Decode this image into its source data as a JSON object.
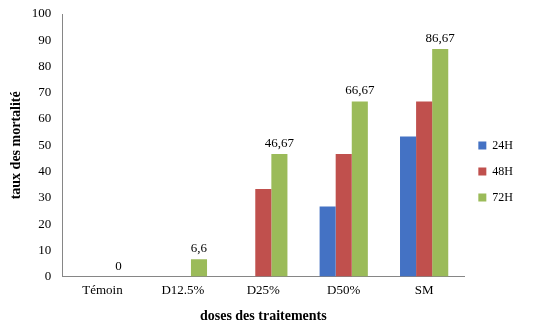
{
  "chart_data": {
    "type": "bar",
    "categories": [
      "Témoin",
      "D12.5%",
      "D25%",
      "D50%",
      "SM"
    ],
    "series": [
      {
        "name": "24H",
        "color": "#4472c4",
        "values": [
          0,
          0,
          0,
          26.67,
          53.33
        ]
      },
      {
        "name": "48H",
        "color": "#c0504d",
        "values": [
          0,
          0,
          33.33,
          46.67,
          66.67
        ]
      },
      {
        "name": "72H",
        "color": "#9bbb59",
        "values": [
          0,
          6.6,
          46.67,
          66.67,
          86.67
        ],
        "data_labels": true,
        "value_labels": [
          "0",
          "6,6",
          "46,67",
          "66,67",
          "86,67"
        ]
      }
    ],
    "x_label": "doses des traitements",
    "y_label": "taux des mortalité",
    "ylim": [
      0,
      100
    ],
    "yticks": [
      0,
      10,
      20,
      30,
      40,
      50,
      60,
      70,
      80,
      90,
      100
    ],
    "grid": false,
    "legend": "right"
  }
}
